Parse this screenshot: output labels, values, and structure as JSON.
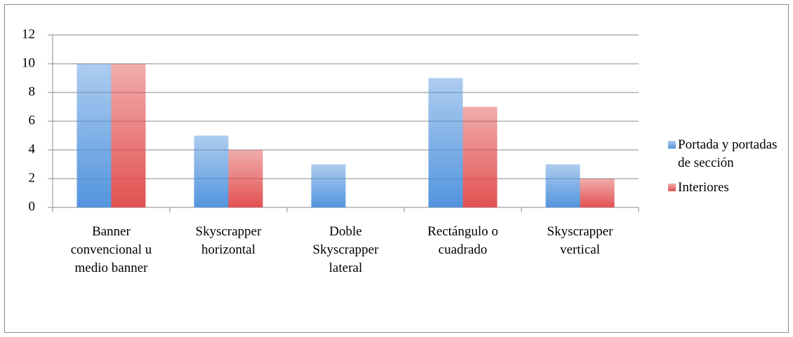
{
  "chart_data": {
    "type": "bar",
    "categories": [
      "Banner convencional u medio banner",
      "Skyscrapper horizontal",
      "Doble Skyscrapper lateral",
      "Rectángulo o cuadrado",
      "Skyscrapper vertical"
    ],
    "series": [
      {
        "name": "Portada y portadas de sección",
        "color": "#4a8fdc",
        "values": [
          10,
          5,
          3,
          9,
          3
        ]
      },
      {
        "name": "Interiores",
        "color": "#e04848",
        "values": [
          10,
          4,
          0,
          7,
          2
        ]
      }
    ],
    "ylim": [
      0,
      12
    ],
    "yticks": [
      0,
      2,
      4,
      6,
      8,
      10,
      12
    ],
    "grid": true,
    "legend": "right"
  }
}
